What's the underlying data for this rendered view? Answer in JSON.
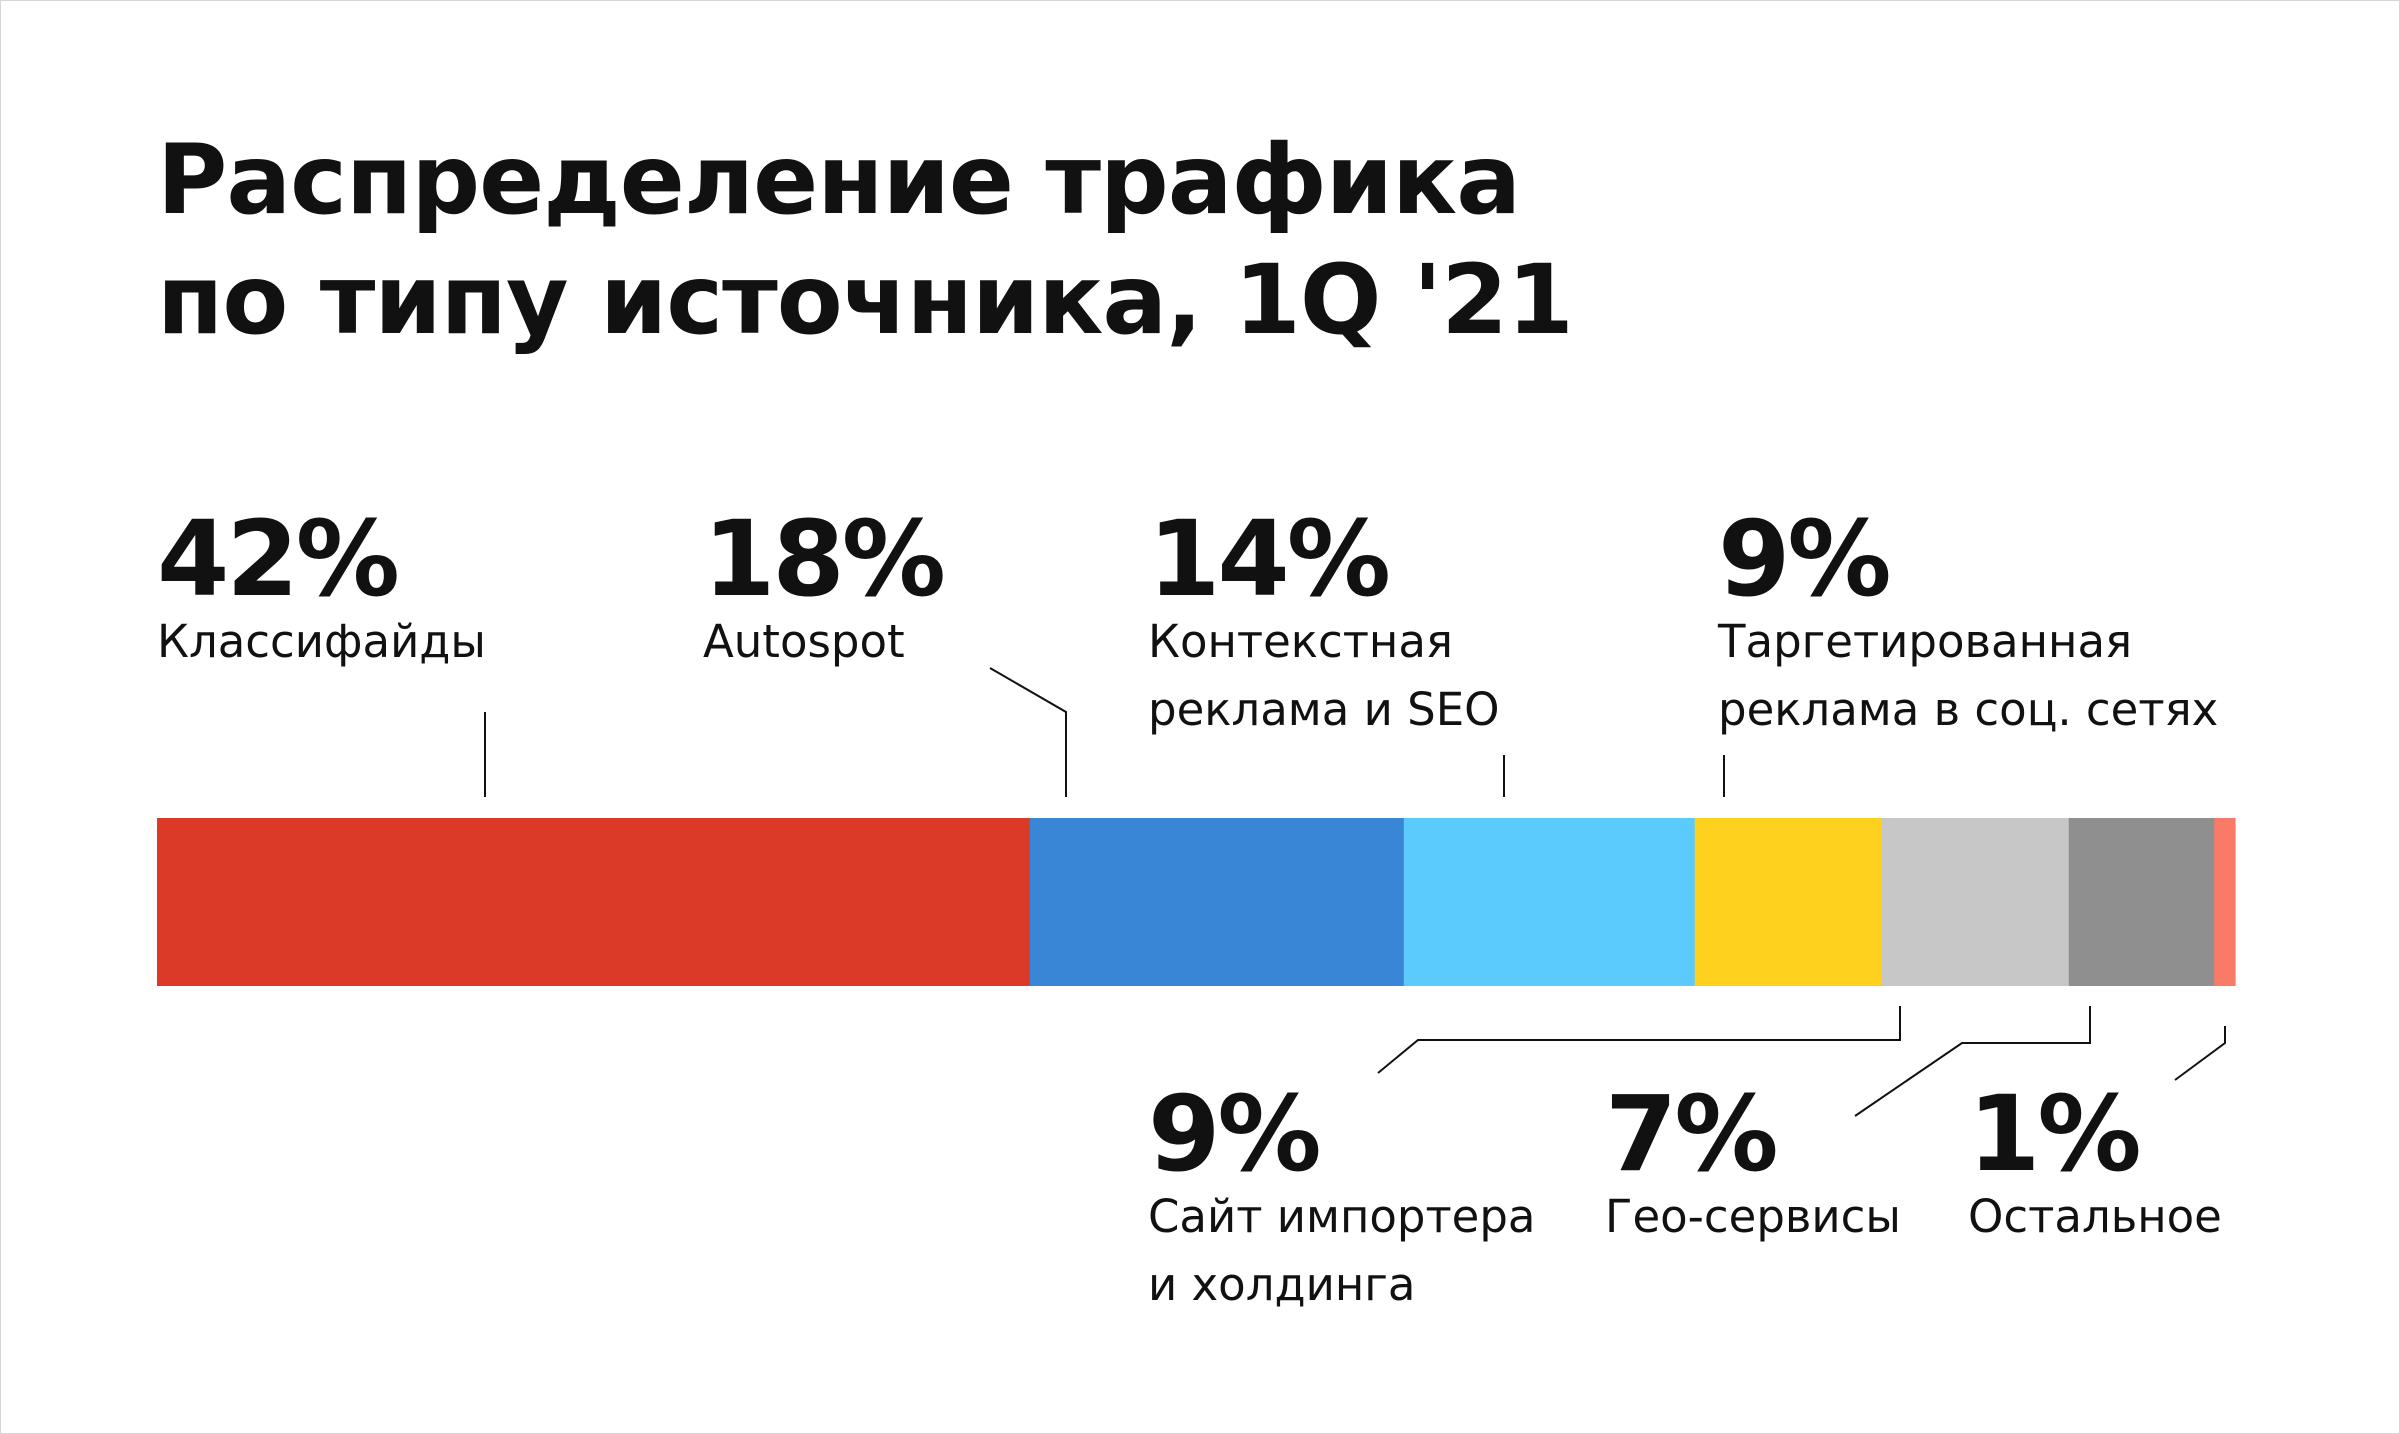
{
  "chart_data": {
    "type": "bar",
    "orientation": "horizontal-stacked-100",
    "title": "Распределение трафика\nпо типу источника, 1Q '21",
    "unit": "%",
    "segments": [
      {
        "value": 42,
        "label": "42%",
        "name": "Классифайды",
        "color": "#db3a28"
      },
      {
        "value": 18,
        "label": "18%",
        "name": "Autospot",
        "color": "#3986d6"
      },
      {
        "value": 14,
        "label": "14%",
        "name": "Контекстная\nреклама и SEO",
        "color": "#5bcbfd"
      },
      {
        "value": 9,
        "label": "9%",
        "name": "Таргетированная\nреклама в соц. сетях",
        "color": "#fed11f"
      },
      {
        "value": 9,
        "label": "9%",
        "name": "Сайт импортера\nи холдинга",
        "color": "#c7c7c7"
      },
      {
        "value": 7,
        "label": "7%",
        "name": "Гео-сервисы",
        "color": "#8f8f8f"
      },
      {
        "value": 1,
        "label": "1%",
        "name": "Остальное",
        "color": "#f97a66"
      }
    ]
  }
}
